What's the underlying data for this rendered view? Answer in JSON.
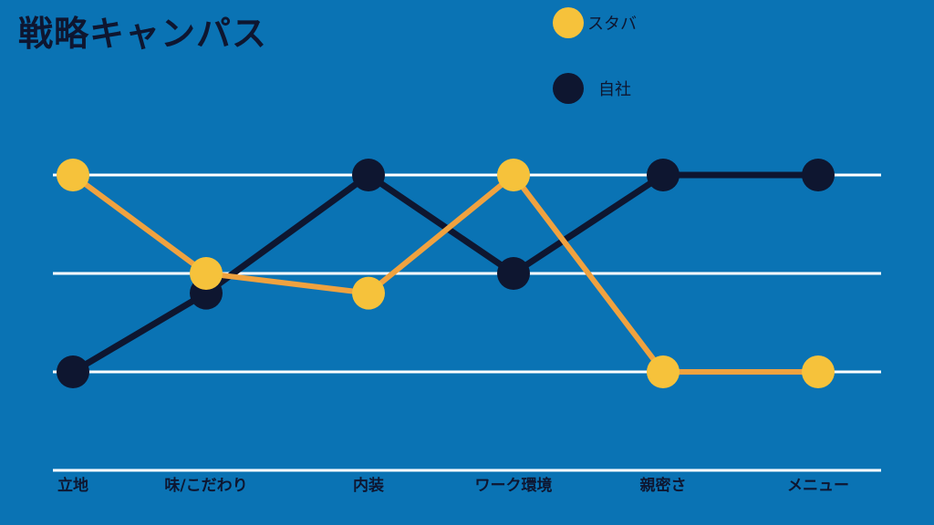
{
  "title": "戦略キャンパス",
  "colors": {
    "background": "#0a73b4",
    "starbucks_dot": "#f6c23b",
    "starbucks_line": "#f0a23f",
    "ours": "#0e1630",
    "gridline": "#ffffff"
  },
  "chart_data": {
    "type": "line",
    "categories": [
      "立地",
      "味/こだわり",
      "内装",
      "ワーク環境",
      "親密さ",
      "メニュー"
    ],
    "ylim": [
      0,
      4
    ],
    "grid": true,
    "series": [
      {
        "name": "スタバ",
        "values": [
          3,
          2,
          1.8,
          3,
          1,
          1
        ]
      },
      {
        "name": "自社",
        "values": [
          1,
          1.8,
          3,
          2,
          3,
          3
        ]
      }
    ]
  }
}
